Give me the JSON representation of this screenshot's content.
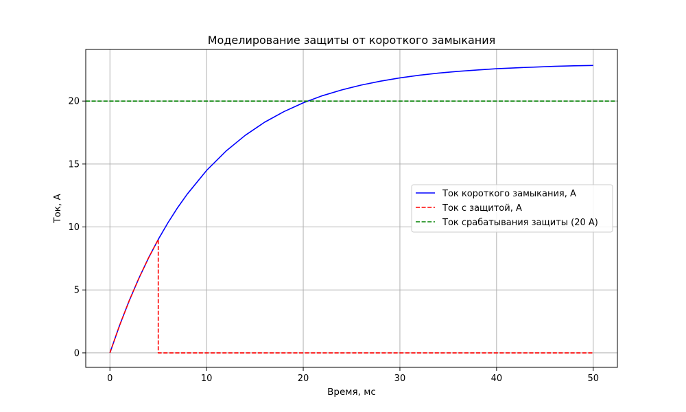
{
  "chart_data": {
    "type": "line",
    "title": "Моделирование защиты от короткого замыкания",
    "xlabel": "Время, мс",
    "ylabel": "Ток, А",
    "xlim": [
      -2.5,
      52.5
    ],
    "ylim": [
      -1.15,
      24.1
    ],
    "xticks": [
      0,
      10,
      20,
      30,
      40,
      50
    ],
    "yticks": [
      0,
      5,
      10,
      15,
      20
    ],
    "grid": true,
    "legend_position": "center-right",
    "series": [
      {
        "name": "Ток короткого замыкания, А",
        "color": "#0000ff",
        "style": "solid",
        "x": [
          0,
          1,
          2,
          3,
          4,
          5,
          6,
          7,
          8,
          10,
          12,
          14,
          16,
          18,
          20,
          22,
          24,
          26,
          28,
          30,
          32,
          34,
          36,
          38,
          40,
          42,
          44,
          46,
          48,
          50
        ],
        "y": [
          0,
          2.18,
          4.15,
          5.93,
          7.55,
          9.01,
          10.33,
          11.53,
          12.61,
          14.49,
          16.02,
          17.28,
          18.32,
          19.16,
          19.86,
          20.43,
          20.89,
          21.27,
          21.58,
          21.84,
          22.05,
          22.22,
          22.36,
          22.47,
          22.57,
          22.64,
          22.7,
          22.76,
          22.8,
          22.83
        ]
      },
      {
        "name": "Ток с защитой, А",
        "color": "#ff0000",
        "style": "dashed",
        "x": [
          0,
          1,
          2,
          3,
          4,
          5,
          5,
          50
        ],
        "y": [
          0,
          2.18,
          4.15,
          5.93,
          7.55,
          9.01,
          0,
          0
        ]
      },
      {
        "name": "Ток срабатывания защиты (20 А)",
        "color": "#008000",
        "style": "dashed",
        "hline": 20
      }
    ]
  }
}
